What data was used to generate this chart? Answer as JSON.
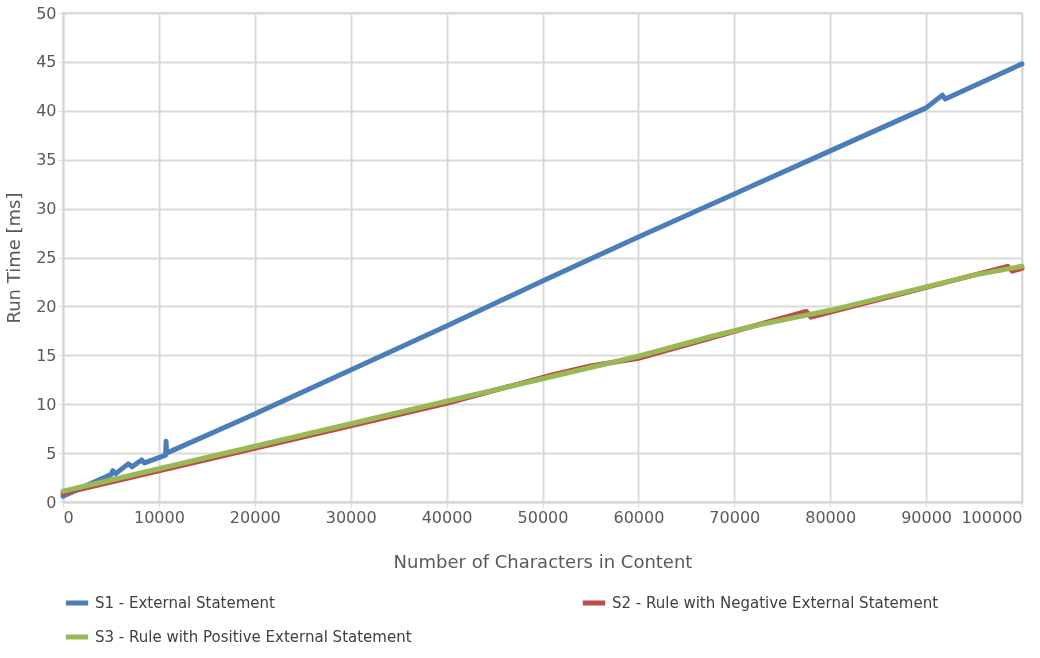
{
  "chart_data": {
    "type": "line",
    "xlabel": "Number of Characters in Content",
    "ylabel": "Run Time [ms]",
    "xlim": [
      0,
      100000
    ],
    "xticks": [
      0,
      10000,
      20000,
      30000,
      40000,
      50000,
      60000,
      70000,
      80000,
      90000,
      100000
    ],
    "ylim": [
      0,
      50
    ],
    "yticks": [
      0,
      5,
      10,
      15,
      20,
      25,
      30,
      35,
      40,
      45,
      50
    ],
    "grid": true,
    "legend": "bottom",
    "marker": "none",
    "line_style": "solid",
    "series": [
      {
        "name": "S1 - External Statement",
        "color": "#4a7ebb",
        "x": [
          0,
          2500,
          5000,
          5200,
          5500,
          6800,
          7200,
          8200,
          8500,
          10700,
          10750,
          10800,
          20000,
          30000,
          40000,
          50000,
          60000,
          70000,
          80000,
          90000,
          91700,
          92000,
          100000
        ],
        "values": [
          0.6,
          1.7,
          2.8,
          3.2,
          2.9,
          3.9,
          3.6,
          4.3,
          4.0,
          4.8,
          6.2,
          5.0,
          9.0,
          13.5,
          18.0,
          22.6,
          27.1,
          31.5,
          35.9,
          40.3,
          41.6,
          41.2,
          44.8
        ]
      },
      {
        "name": "S2 - Rule with Negative External Statement",
        "color": "#be4b48",
        "x": [
          0,
          20000,
          40000,
          51000,
          55000,
          60000,
          77500,
          78000,
          98500,
          99000,
          100000
        ],
        "values": [
          0.9,
          5.5,
          10.1,
          13.0,
          13.9,
          14.7,
          19.5,
          18.9,
          24.1,
          23.6,
          23.9
        ]
      },
      {
        "name": "S3 - Rule with Positive External Statement",
        "color": "#98b954",
        "x": [
          0,
          20000,
          40000,
          60000,
          67500,
          72000,
          80000,
          85000,
          95000,
          100000
        ],
        "values": [
          1.1,
          5.7,
          10.3,
          14.9,
          16.9,
          18.0,
          19.6,
          20.8,
          23.2,
          24.1
        ]
      }
    ]
  }
}
